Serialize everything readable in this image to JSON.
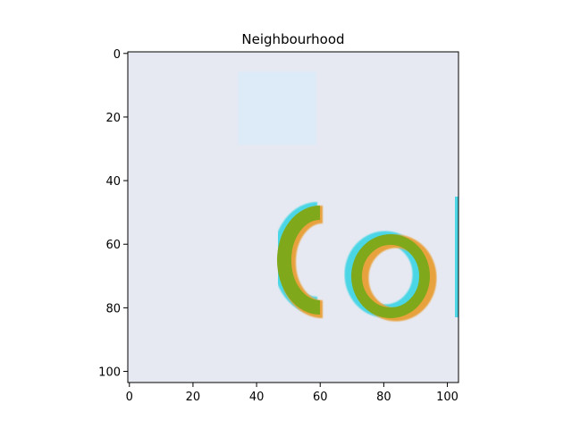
{
  "chart_data": {
    "type": "image",
    "title": "Neighbourhood",
    "xlim": [
      -0.5,
      103.5
    ],
    "ylim": [
      103.5,
      -0.5
    ],
    "y_inverted": true,
    "x_ticks": [
      0,
      20,
      40,
      60,
      80,
      100
    ],
    "y_ticks": [
      0,
      20,
      40,
      60,
      80,
      100
    ],
    "x_tick_labels": [
      "0",
      "20",
      "40",
      "60",
      "80",
      "100"
    ],
    "y_tick_labels": [
      "0",
      "20",
      "40",
      "60",
      "80",
      "100"
    ],
    "grid": false,
    "image_content": {
      "background_color": "#e6e9f1",
      "patch_color": "#ddeaf8",
      "text_fill_color": "#7fa81a",
      "text_halo_colors": [
        "#4cd6e6",
        "#e8a23c"
      ],
      "visible_text": "Co"
    }
  }
}
